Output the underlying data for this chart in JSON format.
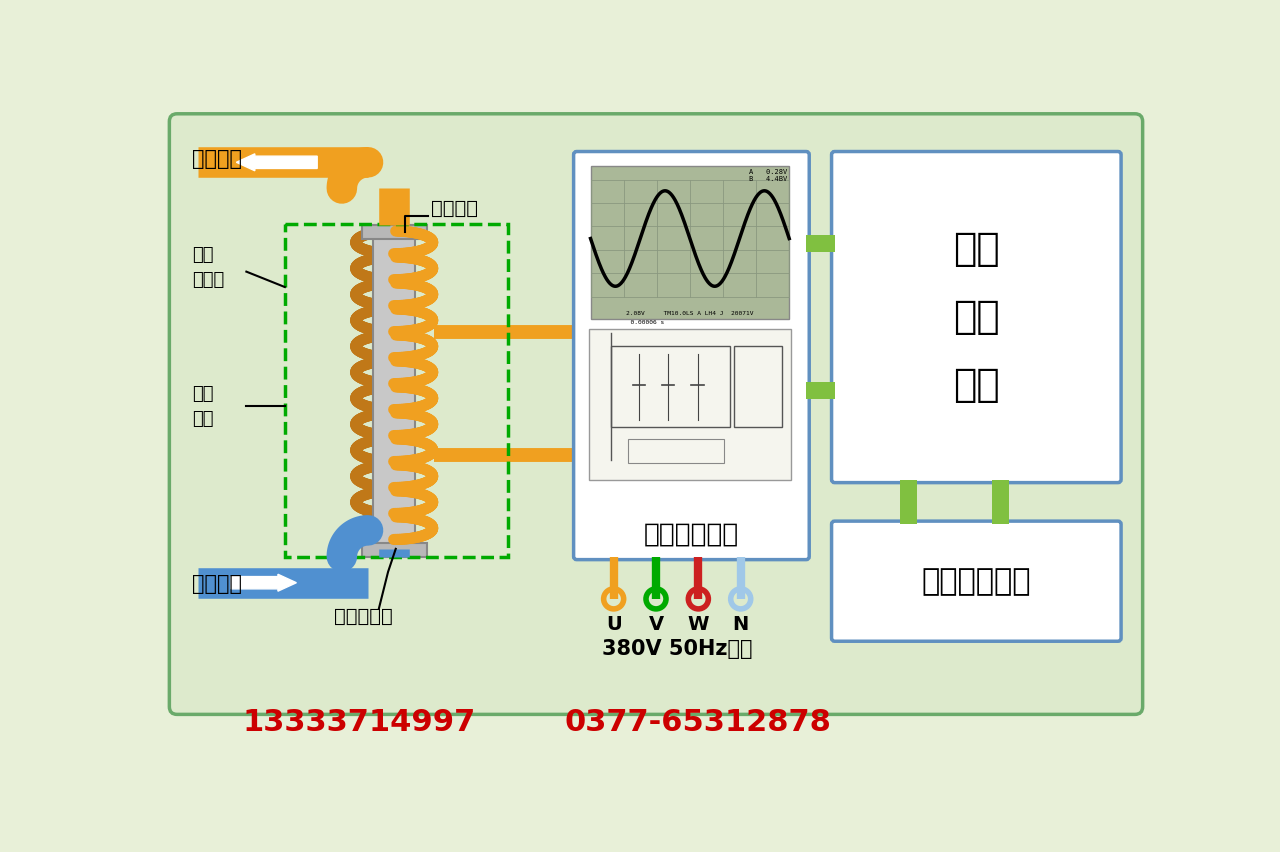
{
  "bg_color": "#e8f0d8",
  "main_box_color": "#ddeacc",
  "border_color": "#6aaa6a",
  "title_phone1": "13333714997",
  "title_phone2": "0377-65312878",
  "phone_color": "#cc0000",
  "labels": {
    "hot_water": "热水输出",
    "cold_water": "冷水进入",
    "metal_pipe": "金属水管",
    "em_shield": "电磁\n屏蔽罩",
    "em_coil": "电磁\n线圈",
    "ceramic_tube": "绝缘陶瓷管",
    "freq_output": "变频功率输出",
    "freq_control": "变频\n控制\n单元",
    "op_control": "操作控制单元",
    "input_label": "380V 50Hz输入"
  },
  "orange_color": "#f0a020",
  "blue_color": "#5090d0",
  "green_color": "#80c040",
  "dashed_green": "#00aa00",
  "gray_color": "#c0c0c0",
  "coil_color": "#f0a020",
  "coil_back_color": "#c07818",
  "pipe_color": "#b0b0b0",
  "freq_box_blue": "#6090c0",
  "connector_colors": [
    "#f0a020",
    "#00aa00",
    "#cc2020",
    "#a0c8e8"
  ],
  "connector_labels": [
    "U",
    "V",
    "W",
    "N"
  ]
}
